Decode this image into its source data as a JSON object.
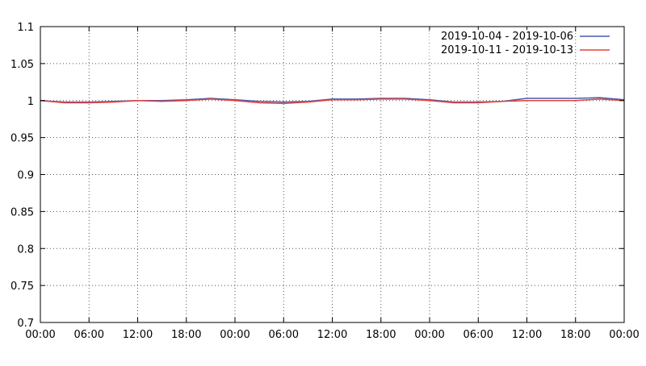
{
  "chart_data": {
    "type": "line",
    "title": "",
    "xlabel": "",
    "ylabel": "",
    "ylim": [
      0.7,
      1.1
    ],
    "yticks": [
      "0.7",
      "0.75",
      "0.8",
      "0.85",
      "0.9",
      "0.95",
      "1",
      "1.05",
      "1.1"
    ],
    "xlim": [
      "2019-10-04T00:00",
      "2019-10-07T00:00"
    ],
    "xticks": [
      "00:00",
      "06:00",
      "12:00",
      "18:00",
      "00:00",
      "06:00",
      "12:00",
      "18:00",
      "00:00",
      "06:00",
      "12:00",
      "18:00",
      "00:00"
    ],
    "grid": true,
    "legend_position": "top-right",
    "x": [
      "2019-10-04T00:00",
      "2019-10-04T03:00",
      "2019-10-04T06:00",
      "2019-10-04T09:00",
      "2019-10-04T12:00",
      "2019-10-04T15:00",
      "2019-10-04T18:00",
      "2019-10-04T21:00",
      "2019-10-05T00:00",
      "2019-10-05T03:00",
      "2019-10-05T06:00",
      "2019-10-05T09:00",
      "2019-10-05T12:00",
      "2019-10-05T15:00",
      "2019-10-05T18:00",
      "2019-10-05T21:00",
      "2019-10-06T00:00",
      "2019-10-06T03:00",
      "2019-10-06T06:00",
      "2019-10-06T09:00",
      "2019-10-06T12:00",
      "2019-10-06T15:00",
      "2019-10-06T18:00",
      "2019-10-06T21:00",
      "2019-10-07T00:00"
    ],
    "series": [
      {
        "name": "2019-10-04 - 2019-10-06",
        "color": "#4a5aad",
        "values": [
          1.0,
          0.998,
          0.998,
          0.999,
          1.0,
          1.0,
          1.001,
          1.003,
          1.001,
          0.999,
          0.998,
          0.999,
          1.002,
          1.002,
          1.003,
          1.003,
          1.001,
          0.998,
          0.998,
          0.999,
          1.003,
          1.003,
          1.003,
          1.004,
          1.001
        ]
      },
      {
        "name": "2019-10-11 - 2019-10-13",
        "color": "#e8403a",
        "values": [
          1.0,
          0.997,
          0.997,
          0.998,
          1.0,
          0.999,
          1.0,
          1.002,
          1.0,
          0.997,
          0.996,
          0.998,
          1.001,
          1.001,
          1.002,
          1.002,
          1.0,
          0.997,
          0.997,
          0.999,
          1.0,
          1.0,
          1.0,
          1.002,
          1.0
        ]
      }
    ]
  }
}
